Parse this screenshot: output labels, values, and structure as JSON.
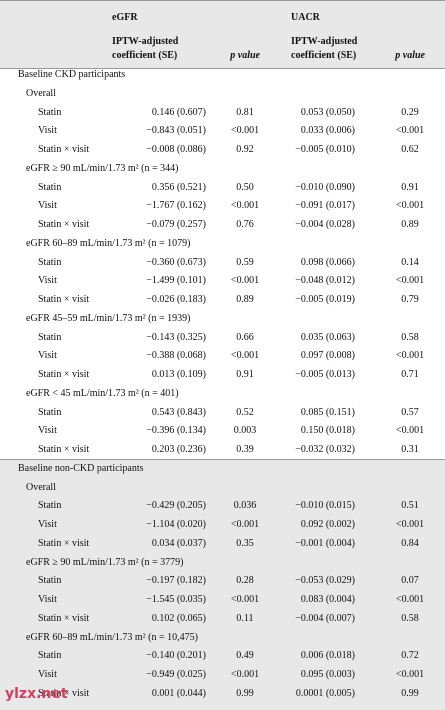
{
  "header": {
    "columns": [
      {
        "name": "eGFR",
        "coef_line1": "IPTW-adjusted",
        "coef_line2": "coefficient (SE)",
        "p": "p value"
      },
      {
        "name": "UACR",
        "coef_line1": "IPTW-adjusted",
        "coef_line2": "coefficient (SE)",
        "p": "p value"
      }
    ]
  },
  "sections": [
    {
      "title": "Baseline CKD participants",
      "groups": [
        {
          "label": "Overall",
          "rows": [
            [
              "Statin",
              "0.146 (0.607)",
              "0.81",
              "0.053 (0.050)",
              "0.29"
            ],
            [
              "Visit",
              "−0.843 (0.051)",
              "<0.001",
              "0.033 (0.006)",
              "<0.001"
            ],
            [
              "Statin × visit",
              "−0.008 (0.086)",
              "0.92",
              "−0.005 (0.010)",
              "0.62"
            ]
          ]
        },
        {
          "label": "eGFR ≥ 90 mL/min/1.73 m² (n = 344)",
          "rows": [
            [
              "Statin",
              "0.356 (0.521)",
              "0.50",
              "−0.010 (0.090)",
              "0.91"
            ],
            [
              "Visit",
              "−1.767 (0.162)",
              "<0.001",
              "−0.091 (0.017)",
              "<0.001"
            ],
            [
              "Statin × visit",
              "−0.079 (0.257)",
              "0.76",
              "−0.004 (0.028)",
              "0.89"
            ]
          ]
        },
        {
          "label": "eGFR 60–89 mL/min/1.73 m² (n = 1079)",
          "rows": [
            [
              "Statin",
              "−0.360 (0.673)",
              "0.59",
              "0.098 (0.066)",
              "0.14"
            ],
            [
              "Visit",
              "−1.499 (0.101)",
              "<0.001",
              "−0.048 (0.012)",
              "<0.001"
            ],
            [
              "Statin × visit",
              "−0.026 (0.183)",
              "0.89",
              "−0.005 (0.019)",
              "0.79"
            ]
          ]
        },
        {
          "label": "eGFR 45–59 mL/min/1.73 m² (n = 1939)",
          "rows": [
            [
              "Statin",
              "−0.143 (0.325)",
              "0.66",
              "0.035 (0.063)",
              "0.58"
            ],
            [
              "Visit",
              "−0.388 (0.068)",
              "<0.001",
              "0.097 (0.008)",
              "<0.001"
            ],
            [
              "Statin × visit",
              "0.013 (0.109)",
              "0.91",
              "−0.005 (0.013)",
              "0.71"
            ]
          ]
        },
        {
          "label": "eGFR < 45 mL/min/1.73 m² (n = 401)",
          "rows": [
            [
              "Statin",
              "0.543 (0.843)",
              "0.52",
              "0.085 (0.151)",
              "0.57"
            ],
            [
              "Visit",
              "−0.396 (0.134)",
              "0.003",
              "0.150 (0.018)",
              "<0.001"
            ],
            [
              "Statin × visit",
              "0.203 (0.236)",
              "0.39",
              "−0.032 (0.032)",
              "0.31"
            ]
          ]
        }
      ]
    },
    {
      "title": "Baseline non-CKD participants",
      "groups": [
        {
          "label": "Overall",
          "rows": [
            [
              "Statin",
              "−0.429 (0.205)",
              "0.036",
              "−0.010 (0.015)",
              "0.51"
            ],
            [
              "Visit",
              "−1.104 (0.020)",
              "<0.001",
              "0.092 (0.002)",
              "<0.001"
            ],
            [
              "Statin × visit",
              "0.034 (0.037)",
              "0.35",
              "−0.001 (0.004)",
              "0.84"
            ]
          ]
        },
        {
          "label": "eGFR ≥ 90 mL/min/1.73 m² (n = 3779)",
          "rows": [
            [
              "Statin",
              "−0.197 (0.182)",
              "0.28",
              "−0.053 (0.029)",
              "0.07"
            ],
            [
              "Visit",
              "−1.545 (0.035)",
              "<0.001",
              "0.083 (0.004)",
              "<0.001"
            ],
            [
              "Statin × visit",
              "0.102 (0.065)",
              "0.11",
              "−0.004 (0.007)",
              "0.58"
            ]
          ]
        },
        {
          "label": "eGFR 60–89 mL/min/1.73 m² (n = 10,475)",
          "rows": [
            [
              "Statin",
              "−0.140 (0.201)",
              "0.49",
              "0.006 (0.018)",
              "0.72"
            ],
            [
              "Visit",
              "−0.949 (0.025)",
              "<0.001",
              "0.095 (0.003)",
              "<0.001"
            ],
            [
              "Statin × visit",
              "0.001 (0.044)",
              "0.99",
              "0.0001 (0.005)",
              "0.99"
            ]
          ]
        }
      ]
    }
  ],
  "watermark": "ylzx.net"
}
